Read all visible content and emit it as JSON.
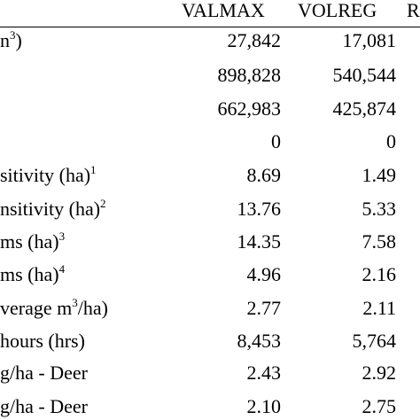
{
  "table": {
    "columns": [
      "VALMAX",
      "VOLREG",
      "R"
    ],
    "rows": [
      {
        "label": [
          {
            "text": "n"
          },
          {
            "sup": "3"
          },
          {
            "text": ")"
          }
        ],
        "values": [
          "27,842",
          "17,081"
        ]
      },
      {
        "label": [],
        "values": [
          "898,828",
          "540,544"
        ]
      },
      {
        "label": [],
        "values": [
          "662,983",
          "425,874"
        ]
      },
      {
        "label": [],
        "values": [
          "0",
          "0"
        ]
      },
      {
        "label": [
          {
            "text": "sitivity (ha)"
          },
          {
            "sup": "1"
          }
        ],
        "values": [
          "8.69",
          "1.49"
        ]
      },
      {
        "label": [
          {
            "text": "nsitivity (ha)"
          },
          {
            "sup": "2"
          }
        ],
        "values": [
          "13.76",
          "5.33"
        ]
      },
      {
        "label": [
          {
            "text": "ms (ha)"
          },
          {
            "sup": "3"
          }
        ],
        "values": [
          "14.35",
          "7.58"
        ]
      },
      {
        "label": [
          {
            "text": "ms (ha)"
          },
          {
            "sup": "4"
          }
        ],
        "values": [
          "4.96",
          "2.16"
        ]
      },
      {
        "label": [
          {
            "text": "verage m"
          },
          {
            "sup": "3"
          },
          {
            "text": "/ha)"
          }
        ],
        "values": [
          "2.77",
          "2.11"
        ]
      },
      {
        "label": [
          {
            "text": "hours (hrs)"
          }
        ],
        "values": [
          "8,453",
          "5,764"
        ]
      },
      {
        "label": [
          {
            "text": "g/ha - Deer"
          }
        ],
        "values": [
          "2.43",
          "2.92"
        ]
      },
      {
        "label": [
          {
            "text": "g/ha - Deer"
          }
        ],
        "values": [
          "2.10",
          "2.75"
        ]
      }
    ]
  }
}
